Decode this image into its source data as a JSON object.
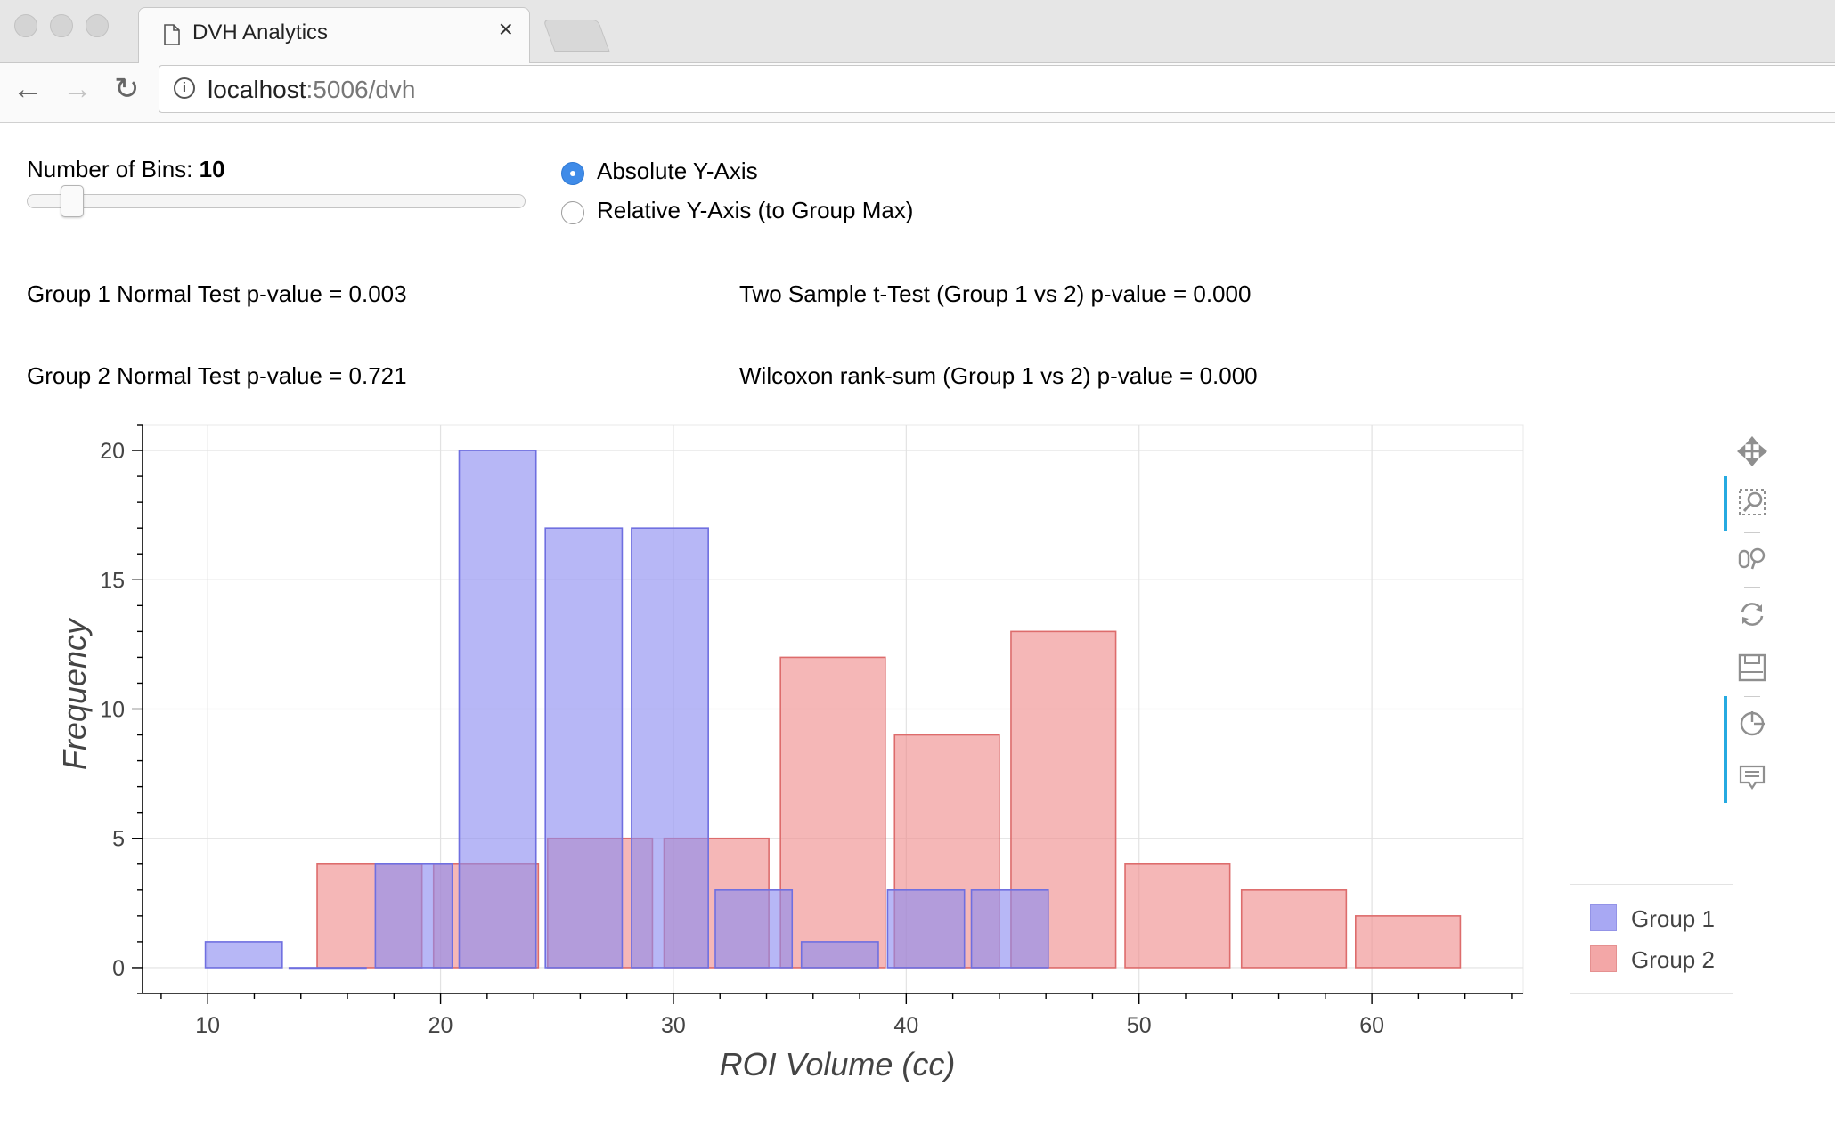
{
  "browser": {
    "tab_title": "DVH Analytics",
    "tab_close": "×",
    "url_host": "localhost",
    "url_rest": ":5006/dvh",
    "back_glyph": "←",
    "forward_glyph": "→",
    "reload_glyph": "↻",
    "info_glyph": "i"
  },
  "controls": {
    "bins_label": "Number of Bins: ",
    "bins_value": "10",
    "bins_slider_value": 10,
    "radio_absolute": "Absolute Y-Axis",
    "radio_relative": "Relative Y-Axis (to Group Max)",
    "selected_axis_mode": "absolute"
  },
  "stats": {
    "group1_normal": "Group 1 Normal Test p-value = 0.003",
    "group2_normal": "Group 2 Normal Test p-value = 0.721",
    "ttest": "Two Sample t-Test (Group 1 vs 2) p-value = 0.000",
    "ranksum": "Wilcoxon rank-sum (Group 1 vs 2) p-value = 0.000"
  },
  "toolbar_tools": [
    "pan-icon",
    "box-zoom-icon",
    "wheel-zoom-icon",
    "reset-icon",
    "save-icon",
    "crosshair-icon",
    "hover-icon"
  ],
  "colors": {
    "group1_fill": "#8b8bf0",
    "group1_stroke": "#6f6fe0",
    "group2_fill": "#ef8a8a",
    "group2_stroke": "#dd6c6c",
    "active_tool": "#26aae1"
  },
  "chart_data": {
    "type": "bar",
    "title": "",
    "xlabel": "ROI Volume (cc)",
    "ylabel": "Frequency",
    "xlim": [
      7.2,
      66.5
    ],
    "ylim": [
      -1,
      21
    ],
    "xticks": [
      10,
      20,
      30,
      40,
      50,
      60
    ],
    "yticks": [
      0,
      5,
      10,
      15,
      20
    ],
    "grid": true,
    "legend_position": "bottom-right",
    "series": [
      {
        "name": "Group 1",
        "bins": [
          {
            "x0": 9.9,
            "x1": 13.2,
            "value": 1
          },
          {
            "x0": 13.5,
            "x1": 16.8,
            "value": 0
          },
          {
            "x0": 17.2,
            "x1": 20.5,
            "value": 4
          },
          {
            "x0": 20.8,
            "x1": 24.1,
            "value": 20
          },
          {
            "x0": 24.5,
            "x1": 27.8,
            "value": 17
          },
          {
            "x0": 28.2,
            "x1": 31.5,
            "value": 17
          },
          {
            "x0": 31.8,
            "x1": 35.1,
            "value": 3
          },
          {
            "x0": 35.5,
            "x1": 38.8,
            "value": 1
          },
          {
            "x0": 39.2,
            "x1": 42.5,
            "value": 3
          },
          {
            "x0": 42.8,
            "x1": 46.1,
            "value": 3
          }
        ]
      },
      {
        "name": "Group 2",
        "bins": [
          {
            "x0": 14.7,
            "x1": 19.2,
            "value": 4
          },
          {
            "x0": 19.7,
            "x1": 24.2,
            "value": 4
          },
          {
            "x0": 24.6,
            "x1": 29.1,
            "value": 5
          },
          {
            "x0": 29.6,
            "x1": 34.1,
            "value": 5
          },
          {
            "x0": 34.6,
            "x1": 39.1,
            "value": 12
          },
          {
            "x0": 39.5,
            "x1": 44.0,
            "value": 9
          },
          {
            "x0": 44.5,
            "x1": 49.0,
            "value": 13
          },
          {
            "x0": 49.4,
            "x1": 53.9,
            "value": 4
          },
          {
            "x0": 54.4,
            "x1": 58.9,
            "value": 3
          },
          {
            "x0": 59.3,
            "x1": 63.8,
            "value": 2
          }
        ]
      }
    ]
  }
}
